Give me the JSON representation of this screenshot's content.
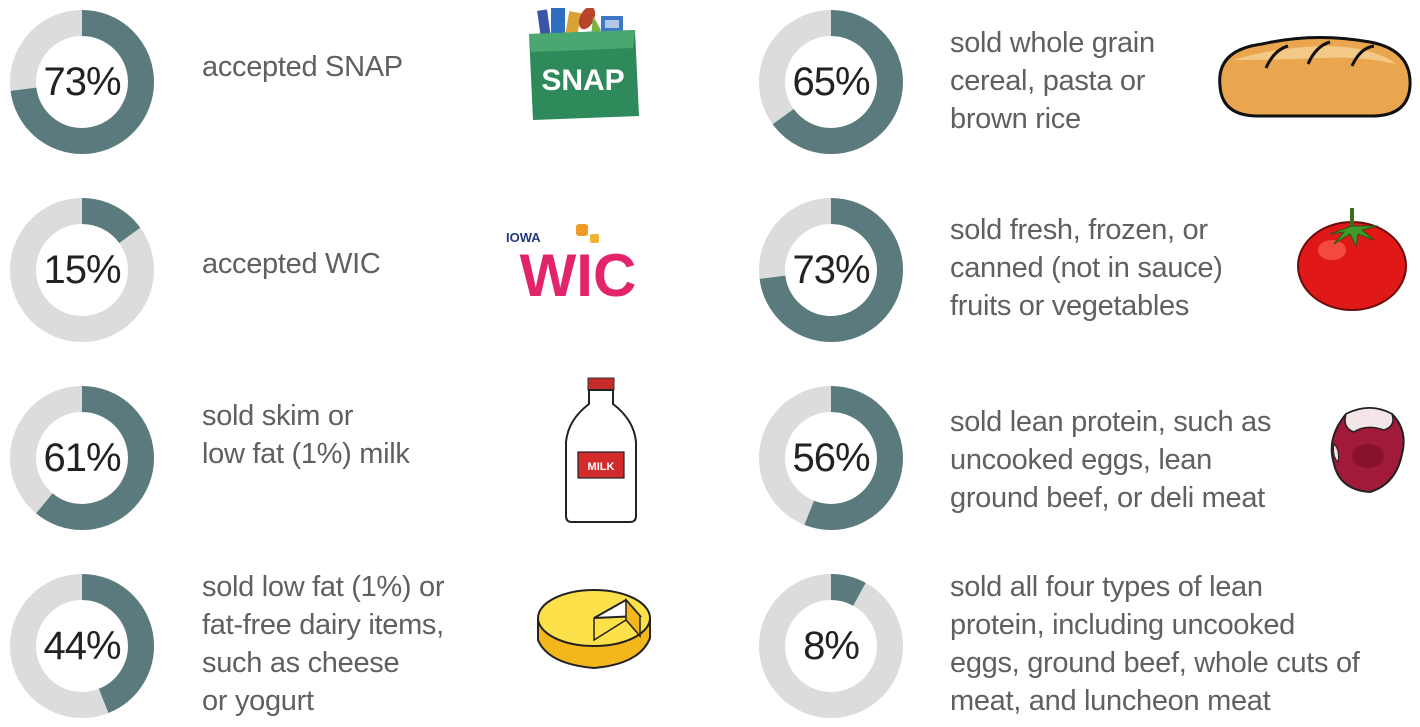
{
  "colors": {
    "filled": "#5b7a7e",
    "track": "#dcdcdc"
  },
  "chart_data": {
    "type": "donut",
    "items": [
      {
        "value": 73,
        "label": "73%",
        "text": "accepted SNAP",
        "icon": "snap-logo-icon"
      },
      {
        "value": 15,
        "label": "15%",
        "text": "accepted WIC",
        "icon": "wic-logo-icon"
      },
      {
        "value": 61,
        "label": "61%",
        "text": "sold skim or\nlow fat (1%) milk",
        "icon": "milk-bottle-icon"
      },
      {
        "value": 44,
        "label": "44%",
        "text": "sold low fat (1%) or\nfat-free dairy items,\nsuch as cheese\nor yogurt",
        "icon": "cheese-icon"
      },
      {
        "value": 65,
        "label": "65%",
        "text": "sold whole grain\ncereal, pasta or\nbrown rice",
        "icon": "bread-icon"
      },
      {
        "value": 73,
        "label": "73%",
        "text": "sold fresh, frozen, or\ncanned (not in sauce)\nfruits or vegetables",
        "icon": "tomato-icon"
      },
      {
        "value": 56,
        "label": "56%",
        "text": "sold lean protein, such as\nuncooked eggs, lean\nground beef, or deli meat",
        "icon": "steak-icon"
      },
      {
        "value": 8,
        "label": "8%",
        "text": "sold all four types of lean\nprotein, including uncooked\neggs, ground beef, whole cuts of\nmeat, and luncheon meat",
        "icon": ""
      }
    ]
  },
  "logos": {
    "snap_text": "SNAP",
    "wic_top": "IOWA",
    "wic_text": "WIC",
    "milk_label": "MILK"
  }
}
